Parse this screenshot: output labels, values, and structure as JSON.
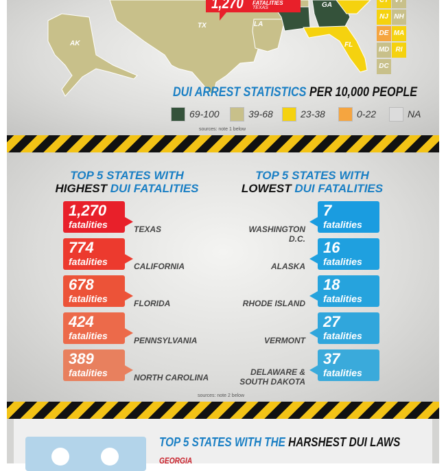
{
  "map": {
    "callout": {
      "number": "1,270",
      "label": "FATALITIES",
      "state": "TEXAS"
    },
    "state_labels": [
      "TX",
      "LA",
      "GA",
      "FL",
      "AK"
    ],
    "small_states": [
      {
        "abbr": "CT",
        "color": "#f5d20f"
      },
      {
        "abbr": "VT",
        "color": "#c8c08a"
      },
      {
        "abbr": "NJ",
        "color": "#f5d20f"
      },
      {
        "abbr": "NH",
        "color": "#c8c08a"
      },
      {
        "abbr": "DE",
        "color": "#f5a540"
      },
      {
        "abbr": "MA",
        "color": "#f5d20f"
      },
      {
        "abbr": "MD",
        "color": "#c8c08a"
      },
      {
        "abbr": "RI",
        "color": "#f5d20f"
      },
      {
        "abbr": "DC",
        "color": "#c8c08a"
      }
    ],
    "title_blue": "DUI ARREST STATISTICS",
    "title_black": "PER 10,000 PEOPLE",
    "legend": [
      {
        "label": "69-100",
        "color": "#34523a"
      },
      {
        "label": "39-68",
        "color": "#c8c08a"
      },
      {
        "label": "23-38",
        "color": "#f5d20f"
      },
      {
        "label": "0-22",
        "color": "#f5a540"
      },
      {
        "label": "NA",
        "color": "#dcdcdc"
      }
    ],
    "source": "sources: note 1 below"
  },
  "fatalities": {
    "highest": {
      "title_blue": "TOP 5 STATES WITH",
      "title_black": "HIGHEST",
      "title_blue2": "DUI FATALITIES",
      "items": [
        {
          "number": "1,270",
          "unit": "fatalities",
          "state": "TEXAS",
          "color": "#e8202a"
        },
        {
          "number": "774",
          "unit": "fatalities",
          "state": "CALIFORNIA",
          "color": "#ec3a2e"
        },
        {
          "number": "678",
          "unit": "fatalities",
          "state": "FLORIDA",
          "color": "#ec5338"
        },
        {
          "number": "424",
          "unit": "fatalities",
          "state": "PENNSYLVANIA",
          "color": "#ec6a4a"
        },
        {
          "number": "389",
          "unit": "fatalities",
          "state": "NORTH CAROLINA",
          "color": "#e8805e"
        }
      ]
    },
    "lowest": {
      "title_blue": "TOP 5 STATES WITH",
      "title_black": "LOWEST",
      "title_blue2": "DUI FATALITIES",
      "items": [
        {
          "number": "7",
          "unit": "fatalities",
          "state": "WASHINGTON D.C.",
          "color": "#1a9ce0"
        },
        {
          "number": "16",
          "unit": "fatalities",
          "state": "ALASKA",
          "color": "#1fa0df"
        },
        {
          "number": "18",
          "unit": "fatalities",
          "state": "RHODE ISLAND",
          "color": "#26a3dd"
        },
        {
          "number": "27",
          "unit": "fatalities",
          "state": "VERMONT",
          "color": "#30a6dc"
        },
        {
          "number": "37",
          "unit": "fatalities",
          "state": "DELAWARE & SOUTH DAKOTA",
          "color": "#3aaadb"
        }
      ]
    },
    "source": "sources: note 2 below"
  },
  "laws": {
    "title_blue": "TOP 5 STATES WITH THE",
    "title_black": "HARSHEST DUI LAWS",
    "first_state": "GEORGIA"
  }
}
